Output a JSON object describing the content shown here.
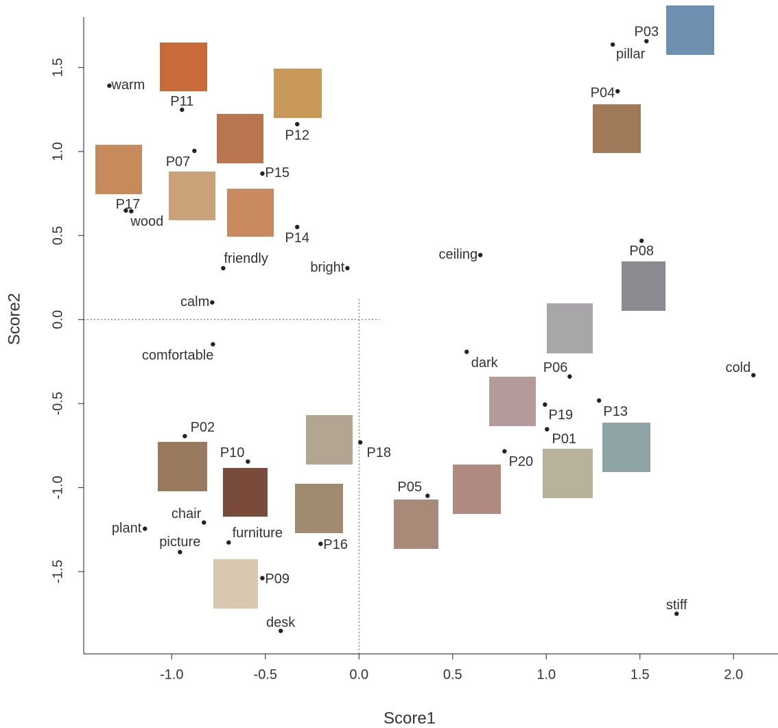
{
  "chart_data": {
    "type": "scatter",
    "x_label": "Score1",
    "y_label": "Score2",
    "color": "#222222",
    "labels": [
      "warm",
      "P11",
      "P12",
      "P07",
      "P15",
      "P17",
      "wood",
      "P14",
      "friendly",
      "bright",
      "ceiling",
      "calm",
      "comfortable",
      "P03",
      "pillar",
      "P04",
      "P08",
      "dark",
      "P06",
      "cold",
      "P13",
      "P19",
      "P01",
      "P20",
      "P18",
      "P02",
      "P10",
      "P05",
      "chair",
      "plant",
      "furniture",
      "P16",
      "picture",
      "P09",
      "desk",
      "stiff"
    ],
    "x": [
      -1.333,
      -0.945,
      -0.33,
      -0.879,
      -0.516,
      -1.245,
      -1.216,
      -0.33,
      -0.725,
      -0.062,
      0.648,
      -0.784,
      -0.78,
      1.535,
      1.355,
      1.381,
      1.509,
      0.575,
      1.125,
      2.106,
      1.282,
      0.993,
      1.004,
      0.777,
      0.007,
      -0.93,
      -0.593,
      0.366,
      -0.828,
      -1.143,
      -0.696,
      -0.205,
      -0.956,
      -0.516,
      -0.418,
      1.696
    ],
    "values": [
      1.392,
      1.249,
      1.163,
      1.004,
      0.869,
      0.649,
      0.645,
      0.551,
      0.306,
      0.306,
      0.384,
      0.102,
      -0.147,
      1.657,
      1.637,
      1.359,
      0.469,
      -0.192,
      -0.339,
      -0.331,
      -0.482,
      -0.506,
      -0.653,
      -0.784,
      -0.731,
      -0.694,
      -0.845,
      -1.049,
      -1.208,
      -1.245,
      -1.327,
      -1.335,
      -1.384,
      -1.539,
      -1.853,
      -1.751
    ],
    "xlim": [
      -1.47,
      2.23
    ],
    "ylim": [
      -1.99,
      1.8
    ],
    "xticks": [
      {
        "value": -1,
        "label": "-1.0"
      },
      {
        "value": -0.5,
        "label": "-0.5"
      },
      {
        "value": 0,
        "label": "0.0"
      },
      {
        "value": 0.5,
        "label": "0.5"
      },
      {
        "value": 1,
        "label": "1.0"
      },
      {
        "value": 1.5,
        "label": "1.5"
      },
      {
        "value": 2,
        "label": "2.0"
      }
    ],
    "yticks": [
      {
        "value": -1.5,
        "label": "-1.5"
      },
      {
        "value": -1,
        "label": "-1.0"
      },
      {
        "value": -0.5,
        "label": "-0.5"
      },
      {
        "value": 0,
        "label": "0.0"
      },
      {
        "value": 0.5,
        "label": "0.5"
      },
      {
        "value": 1,
        "label": "1.0"
      },
      {
        "value": 1.5,
        "label": "1.5"
      }
    ]
  }
}
